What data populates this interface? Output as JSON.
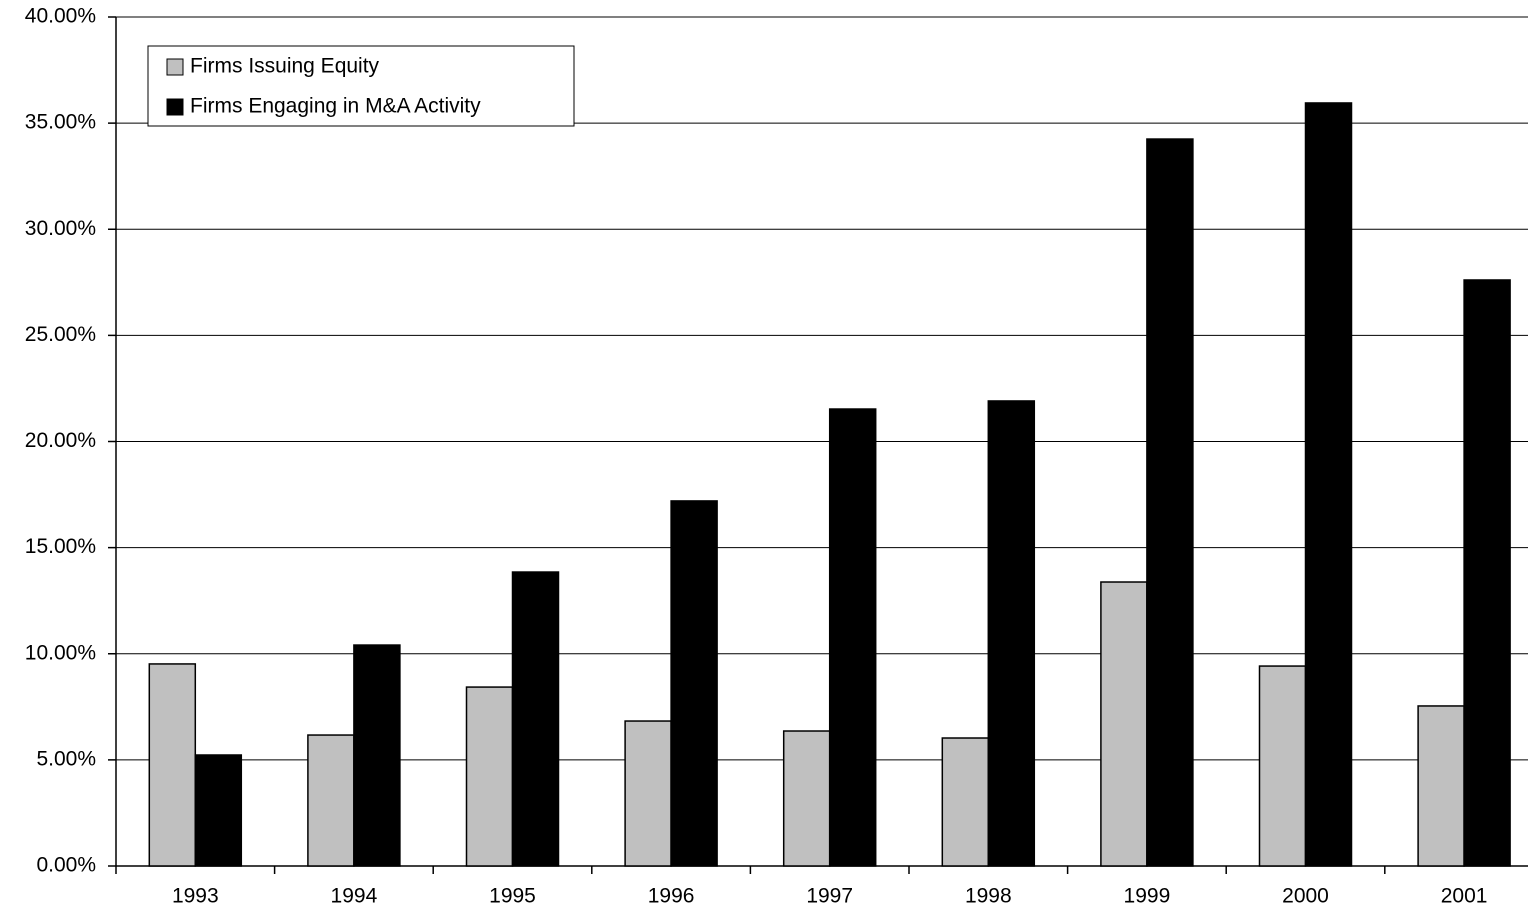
{
  "chart_data": {
    "type": "bar",
    "categories": [
      "1993",
      "1994",
      "1995",
      "1996",
      "1997",
      "1998",
      "1999",
      "2000",
      "2001"
    ],
    "series": [
      {
        "name": "Firms Issuing Equity",
        "color": "#c0c0c0",
        "values": [
          9.52,
          6.17,
          8.43,
          6.83,
          6.36,
          6.03,
          13.38,
          9.42,
          7.54
        ]
      },
      {
        "name": "Firms Engaging in M&A Activity",
        "color": "#000000",
        "values": [
          5.23,
          10.41,
          13.85,
          17.2,
          21.53,
          21.91,
          34.25,
          35.95,
          27.61
        ]
      }
    ],
    "ylim": [
      0,
      40
    ],
    "yticks": [
      {
        "value": 0,
        "label": "0.00%"
      },
      {
        "value": 5,
        "label": "5.00%"
      },
      {
        "value": 10,
        "label": "10.00%"
      },
      {
        "value": 15,
        "label": "15.00%"
      },
      {
        "value": 20,
        "label": "20.00%"
      },
      {
        "value": 25,
        "label": "25.00%"
      },
      {
        "value": 30,
        "label": "30.00%"
      },
      {
        "value": 35,
        "label": "35.00%"
      },
      {
        "value": 40,
        "label": "40.00%"
      }
    ],
    "grid": true,
    "legend": "upper-left"
  }
}
